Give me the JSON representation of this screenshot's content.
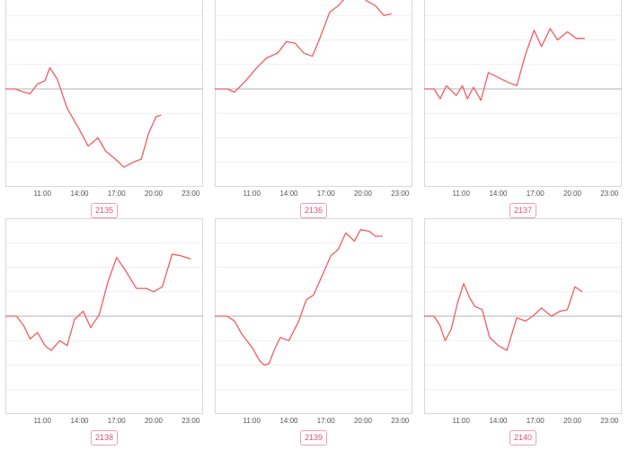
{
  "chart_data": [
    {
      "type": "line",
      "label": "2135",
      "x_ticks": [
        "11:00",
        "14:00",
        "17:00",
        "20:00",
        "23:00"
      ],
      "xlim": [
        8.0,
        24.0
      ],
      "ylim": [
        -6.0,
        6.0
      ],
      "baseline": 0,
      "grid": true,
      "line_color": "#f25c63",
      "x": [
        8.0,
        8.8,
        9.5,
        10.0,
        10.6,
        11.2,
        11.6,
        12.2,
        13.0,
        14.0,
        14.7,
        15.5,
        16.1,
        16.9,
        17.6,
        18.3,
        19.0,
        19.6,
        20.2,
        20.6
      ],
      "y": [
        0.0,
        0.0,
        -0.2,
        -0.3,
        0.3,
        0.5,
        1.3,
        0.6,
        -1.2,
        -2.5,
        -3.5,
        -3.0,
        -3.8,
        -4.3,
        -4.8,
        -4.5,
        -4.3,
        -2.7,
        -1.7,
        -1.6
      ]
    },
    {
      "type": "line",
      "label": "2136",
      "x_ticks": [
        "11:00",
        "14:00",
        "17:00",
        "20:00",
        "23:00"
      ],
      "xlim": [
        8.0,
        24.0
      ],
      "ylim": [
        -6.0,
        6.0
      ],
      "baseline": 0,
      "grid": true,
      "line_color": "#f25c63",
      "x": [
        8.0,
        9.0,
        9.6,
        10.5,
        11.4,
        12.2,
        13.1,
        13.8,
        14.5,
        15.2,
        15.9,
        16.5,
        17.3,
        18.0,
        18.7,
        19.5,
        20.3,
        21.0,
        21.7,
        22.3
      ],
      "y": [
        0.0,
        0.0,
        -0.2,
        0.5,
        1.3,
        1.9,
        2.2,
        2.9,
        2.8,
        2.2,
        2.0,
        3.1,
        4.7,
        5.1,
        5.7,
        5.9,
        5.4,
        5.1,
        4.5,
        4.6
      ]
    },
    {
      "type": "line",
      "label": "2137",
      "x_ticks": [
        "11:00",
        "14:00",
        "17:00",
        "20:00",
        "23:00"
      ],
      "xlim": [
        8.0,
        24.0
      ],
      "ylim": [
        -6.0,
        6.0
      ],
      "baseline": 0,
      "grid": true,
      "line_color": "#f25c63",
      "x": [
        8.0,
        8.8,
        9.3,
        9.8,
        10.6,
        11.1,
        11.5,
        12.0,
        12.6,
        13.2,
        14.0,
        14.8,
        15.5,
        16.2,
        16.9,
        17.5,
        18.2,
        18.8,
        19.6,
        20.3,
        21.0
      ],
      "y": [
        0.0,
        0.0,
        -0.6,
        0.2,
        -0.4,
        0.2,
        -0.6,
        0.1,
        -0.7,
        1.0,
        0.7,
        0.4,
        0.2,
        2.1,
        3.6,
        2.6,
        3.7,
        3.0,
        3.5,
        3.1,
        3.1
      ]
    },
    {
      "type": "line",
      "label": "2138",
      "x_ticks": [
        "11:00",
        "14:00",
        "17:00",
        "20:00",
        "23:00"
      ],
      "xlim": [
        8.0,
        24.0
      ],
      "ylim": [
        -6.0,
        6.0
      ],
      "baseline": 0,
      "grid": true,
      "line_color": "#f25c63",
      "x": [
        8.0,
        8.9,
        9.5,
        10.0,
        10.6,
        11.2,
        11.7,
        12.4,
        13.0,
        13.6,
        14.3,
        14.9,
        15.6,
        16.3,
        17.0,
        17.8,
        18.6,
        19.4,
        20.0,
        20.7,
        21.5,
        22.2,
        23.0
      ],
      "y": [
        0.0,
        0.0,
        -0.6,
        -1.4,
        -1.0,
        -1.8,
        -2.1,
        -1.5,
        -1.8,
        -0.2,
        0.3,
        -0.7,
        0.1,
        2.1,
        3.6,
        2.7,
        1.7,
        1.7,
        1.5,
        1.8,
        3.8,
        3.7,
        3.5
      ]
    },
    {
      "type": "line",
      "label": "2139",
      "x_ticks": [
        "11:00",
        "14:00",
        "17:00",
        "20:00",
        "23:00"
      ],
      "xlim": [
        8.0,
        24.0
      ],
      "ylim": [
        -6.0,
        6.0
      ],
      "baseline": 0,
      "grid": true,
      "line_color": "#f25c63",
      "x": [
        8.0,
        9.0,
        9.6,
        10.2,
        11.1,
        11.6,
        12.0,
        12.4,
        12.8,
        13.3,
        14.0,
        14.8,
        15.4,
        16.0,
        16.7,
        17.4,
        18.0,
        18.6,
        19.3,
        19.8,
        20.5,
        21.0,
        21.6
      ],
      "y": [
        0.0,
        0.0,
        -0.3,
        -1.1,
        -2.0,
        -2.7,
        -3.0,
        -2.9,
        -2.1,
        -1.3,
        -1.5,
        -0.3,
        1.0,
        1.3,
        2.5,
        3.7,
        4.1,
        5.1,
        4.6,
        5.3,
        5.2,
        4.9,
        4.9
      ]
    },
    {
      "type": "line",
      "label": "2140",
      "x_ticks": [
        "11:00",
        "14:00",
        "17:00",
        "20:00",
        "23:00"
      ],
      "xlim": [
        8.0,
        24.0
      ],
      "ylim": [
        -6.0,
        6.0
      ],
      "baseline": 0,
      "grid": true,
      "line_color": "#f25c63",
      "x": [
        8.0,
        8.8,
        9.3,
        9.7,
        10.2,
        10.7,
        11.2,
        11.7,
        12.1,
        12.7,
        13.3,
        14.0,
        14.7,
        15.5,
        16.2,
        16.8,
        17.5,
        18.3,
        19.0,
        19.6,
        20.2,
        20.8
      ],
      "y": [
        0.0,
        0.0,
        -0.6,
        -1.5,
        -0.8,
        0.8,
        2.0,
        1.1,
        0.6,
        0.4,
        -1.3,
        -1.8,
        -2.1,
        -0.1,
        -0.3,
        0.0,
        0.5,
        0.0,
        0.3,
        0.4,
        1.8,
        1.5
      ]
    }
  ]
}
